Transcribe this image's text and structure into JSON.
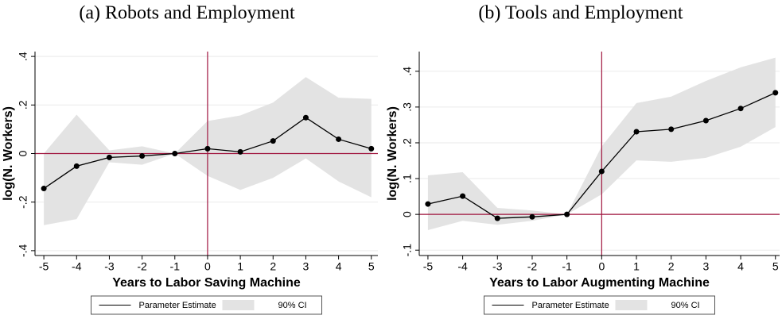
{
  "chart_data": [
    {
      "type": "line",
      "title": "(a) Robots and Employment",
      "xlabel": "Years to Labor Saving Machine",
      "ylabel": "log(N. Workers)",
      "x": [
        -5,
        -4,
        -3,
        -2,
        -1,
        0,
        1,
        2,
        3,
        4,
        5
      ],
      "series": [
        {
          "name": "Parameter Estimate",
          "color": "#000000",
          "values": [
            -0.144,
            -0.052,
            -0.016,
            -0.01,
            0,
            0.02,
            0.007,
            0.052,
            0.148,
            0.059,
            0.02
          ]
        }
      ],
      "ci": {
        "name": "90% CI",
        "color": "#e3e3e3",
        "upper": [
          0.0,
          0.16,
          0.013,
          0.03,
          0,
          0.134,
          0.157,
          0.21,
          0.315,
          0.23,
          0.225
        ],
        "lower": [
          -0.295,
          -0.27,
          -0.036,
          -0.046,
          0,
          -0.092,
          -0.15,
          -0.1,
          -0.02,
          -0.115,
          -0.18
        ]
      },
      "xlim": [
        -5.27,
        5.2
      ],
      "ylim": [
        -0.42,
        0.42
      ],
      "xticks": [
        -5,
        -4,
        -3,
        -2,
        -1,
        0,
        1,
        2,
        3,
        4,
        5
      ],
      "yticks": [
        {
          "value": -0.4,
          "label": "-.4"
        },
        {
          "value": -0.2,
          "label": "-.2"
        },
        0,
        {
          "value": 0.2,
          "label": ".2"
        },
        {
          "value": 0.4,
          "label": ".4"
        }
      ],
      "xline": 0,
      "yline": 0,
      "refline_color": "#a0153e",
      "grid": true
    },
    {
      "type": "line",
      "title": "(b) Tools and Employment",
      "xlabel": "Years to Labor Augmenting Machine",
      "ylabel": "log(N. Workers)",
      "x": [
        -5,
        -4,
        -3,
        -2,
        -1,
        0,
        1,
        2,
        3,
        4,
        5
      ],
      "series": [
        {
          "name": "Parameter Estimate",
          "color": "#000000",
          "values": [
            0.029,
            0.051,
            -0.011,
            -0.007,
            0,
            0.12,
            0.231,
            0.238,
            0.262,
            0.296,
            0.34
          ]
        }
      ],
      "ci": {
        "name": "90% CI",
        "color": "#e3e3e3",
        "upper": [
          0.109,
          0.118,
          0.018,
          0.011,
          0,
          0.19,
          0.311,
          0.329,
          0.373,
          0.411,
          0.438
        ],
        "lower": [
          -0.044,
          -0.018,
          -0.029,
          -0.018,
          0,
          0.056,
          0.151,
          0.147,
          0.158,
          0.189,
          0.244
        ]
      },
      "xlim": [
        -5.25,
        5.12
      ],
      "ylim": [
        -0.115,
        0.455
      ],
      "xticks": [
        -5,
        -4,
        -3,
        -2,
        -1,
        0,
        1,
        2,
        3,
        4,
        5
      ],
      "yticks": [
        {
          "value": -0.1,
          "label": "-.1"
        },
        0,
        {
          "value": 0.1,
          "label": ".1"
        },
        {
          "value": 0.2,
          "label": ".2"
        },
        {
          "value": 0.3,
          "label": ".3"
        },
        {
          "value": 0.4,
          "label": ".4"
        }
      ],
      "xline": 0,
      "yline": 0,
      "refline_color": "#a0153e",
      "grid": true
    }
  ]
}
